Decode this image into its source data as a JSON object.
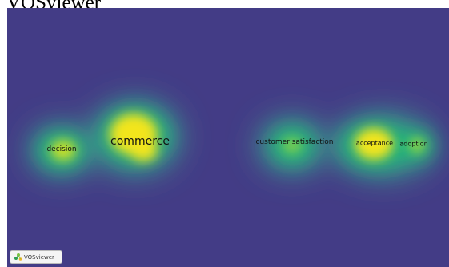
{
  "header": {
    "title": "VOSviewer"
  },
  "map": {
    "view": "density",
    "colors": {
      "background": "#433c86",
      "low": "#3f8a8c",
      "mid": "#21b37a",
      "high": "#f2e51d"
    },
    "terms": [
      {
        "id": "decision",
        "label": "decision",
        "density": "medium"
      },
      {
        "id": "commerce",
        "label": "commerce",
        "density": "high"
      },
      {
        "id": "customer-satisfaction",
        "label": "customer satisfaction",
        "density": "medium"
      },
      {
        "id": "acceptance",
        "label": "acceptance",
        "density": "high"
      },
      {
        "id": "adoption",
        "label": "adoption",
        "density": "medium"
      }
    ]
  },
  "badge": {
    "label": "VOSviewer",
    "icon": "vosviewer-logo-icon"
  }
}
